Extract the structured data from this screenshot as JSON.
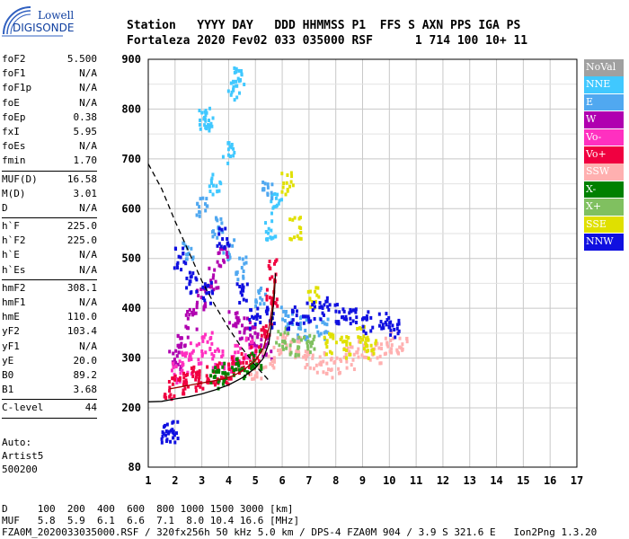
{
  "logo": {
    "line1": "Lowell",
    "line2": "DIGISONDE"
  },
  "header": {
    "labels": "Station   YYYY DAY   DDD HHMMSS P1  FFS S AXN PPS IGA PS",
    "values": "Fortaleza 2020 Fev02 033 035000 RSF      1 714 100 10+ 11"
  },
  "params": {
    "g1": [
      {
        "k": "foF2",
        "v": "5.500"
      },
      {
        "k": "foF1",
        "v": "N/A"
      },
      {
        "k": "foF1p",
        "v": "N/A"
      },
      {
        "k": "foE",
        "v": "N/A"
      },
      {
        "k": "foEp",
        "v": "0.38"
      },
      {
        "k": "fxI",
        "v": "5.95"
      },
      {
        "k": "foEs",
        "v": "N/A"
      },
      {
        "k": "fmin",
        "v": "1.70"
      }
    ],
    "g2": [
      {
        "k": "MUF(D)",
        "v": "16.58"
      },
      {
        "k": "M(D)",
        "v": "3.01"
      },
      {
        "k": "D",
        "v": "N/A"
      }
    ],
    "g3": [
      {
        "k": "h`F",
        "v": "225.0"
      },
      {
        "k": "h`F2",
        "v": "225.0"
      },
      {
        "k": "h`E",
        "v": "N/A"
      },
      {
        "k": "h`Es",
        "v": "N/A"
      }
    ],
    "g4": [
      {
        "k": "hmF2",
        "v": "308.1"
      },
      {
        "k": "hmF1",
        "v": "N/A"
      },
      {
        "k": "hmE",
        "v": "110.0"
      },
      {
        "k": "yF2",
        "v": "103.4"
      },
      {
        "k": "yF1",
        "v": "N/A"
      },
      {
        "k": "yE",
        "v": "20.0"
      },
      {
        "k": "B0",
        "v": "89.2"
      },
      {
        "k": "B1",
        "v": "3.68"
      }
    ],
    "g5": [
      {
        "k": "C-level",
        "v": "44"
      }
    ]
  },
  "auto": {
    "l1": "Auto:",
    "l2": "Artist5",
    "l3": "500200"
  },
  "legend": [
    {
      "label": "NoVal",
      "color": "#a0a0a0"
    },
    {
      "label": "NNE",
      "color": "#40c8ff"
    },
    {
      "label": "E",
      "color": "#50a8f0"
    },
    {
      "label": "W",
      "color": "#b000b0"
    },
    {
      "label": "Vo-",
      "color": "#ff30c0"
    },
    {
      "label": "Vo+",
      "color": "#f00040"
    },
    {
      "label": "SSW",
      "color": "#ffb0b0"
    },
    {
      "label": "X-",
      "color": "#008000"
    },
    {
      "label": "X+",
      "color": "#80c060"
    },
    {
      "label": "SSE",
      "color": "#e0e000"
    },
    {
      "label": "NNW",
      "color": "#1010e0"
    }
  ],
  "footer": {
    "d_row": "D     100  200  400  600  800 1000 1500 3000 [km]",
    "muf_row": "MUF   5.8  5.9  6.1  6.6  7.1  8.0 10.4 16.6 [MHz]",
    "file_row": "FZA0M_2020033035000.RSF / 320fx256h 50 kHz 5.0 km / DPS-4 FZA0M 904 / 3.9 S 321.6 E   Ion2Png 1.3.20"
  },
  "chart_data": {
    "type": "scatter",
    "xlim": [
      1,
      17
    ],
    "ylim": [
      80,
      900
    ],
    "x_ticks": [
      1,
      2,
      3,
      4,
      5,
      6,
      7,
      8,
      9,
      10,
      11,
      12,
      13,
      14,
      15,
      16,
      17
    ],
    "y_ticks": [
      80,
      200,
      300,
      400,
      500,
      600,
      700,
      800,
      900
    ],
    "grid": true,
    "series": [
      {
        "name": "NoVal",
        "values": []
      },
      {
        "name": "NNE",
        "points": [
          [
            3.1,
            780
          ],
          [
            3.3,
            775
          ],
          [
            4.2,
            840
          ],
          [
            4.4,
            860
          ],
          [
            5.6,
            560
          ],
          [
            5.8,
            610
          ],
          [
            4.0,
            710
          ],
          [
            3.5,
            650
          ]
        ]
      },
      {
        "name": "E",
        "points": [
          [
            2.5,
            520
          ],
          [
            3.0,
            600
          ],
          [
            3.6,
            560
          ],
          [
            4.0,
            520
          ],
          [
            4.5,
            480
          ],
          [
            5.2,
            420
          ],
          [
            5.5,
            640
          ],
          [
            6.2,
            380
          ],
          [
            6.8,
            360
          ],
          [
            7.5,
            360
          ]
        ]
      },
      {
        "name": "W",
        "points": [
          [
            2.0,
            300
          ],
          [
            2.3,
            340
          ],
          [
            2.6,
            380
          ],
          [
            3.0,
            420
          ],
          [
            3.4,
            460
          ],
          [
            3.8,
            500
          ],
          [
            4.2,
            380
          ],
          [
            4.6,
            360
          ],
          [
            5.0,
            340
          ],
          [
            5.4,
            320
          ]
        ]
      },
      {
        "name": "Vo-",
        "points": [
          [
            2.1,
            270
          ],
          [
            2.4,
            290
          ],
          [
            2.8,
            310
          ],
          [
            3.2,
            330
          ],
          [
            3.6,
            300
          ],
          [
            4.0,
            290
          ],
          [
            4.4,
            310
          ],
          [
            4.8,
            320
          ]
        ]
      },
      {
        "name": "Vo+",
        "points": [
          [
            1.8,
            240
          ],
          [
            2.2,
            250
          ],
          [
            2.6,
            260
          ],
          [
            3.0,
            255
          ],
          [
            3.4,
            265
          ],
          [
            3.8,
            270
          ],
          [
            4.2,
            280
          ],
          [
            4.6,
            290
          ],
          [
            5.0,
            300
          ],
          [
            5.4,
            360
          ],
          [
            5.6,
            420
          ],
          [
            5.7,
            475
          ]
        ]
      },
      {
        "name": "SSW",
        "points": [
          [
            5.0,
            280
          ],
          [
            5.5,
            300
          ],
          [
            6.0,
            330
          ],
          [
            6.5,
            320
          ],
          [
            7.0,
            300
          ],
          [
            7.5,
            290
          ],
          [
            8.0,
            280
          ],
          [
            8.5,
            300
          ],
          [
            9.0,
            320
          ],
          [
            9.5,
            310
          ],
          [
            10.0,
            330
          ],
          [
            10.5,
            330
          ]
        ]
      },
      {
        "name": "X-",
        "points": [
          [
            3.5,
            260
          ],
          [
            4.0,
            270
          ],
          [
            4.5,
            280
          ],
          [
            5.0,
            300
          ]
        ]
      },
      {
        "name": "X+",
        "points": [
          [
            6.0,
            340
          ],
          [
            6.5,
            320
          ],
          [
            7.0,
            330
          ]
        ]
      },
      {
        "name": "SSE",
        "points": [
          [
            6.2,
            650
          ],
          [
            6.5,
            560
          ],
          [
            7.2,
            420
          ],
          [
            7.8,
            330
          ],
          [
            8.4,
            320
          ],
          [
            9.0,
            340
          ],
          [
            9.3,
            320
          ]
        ]
      },
      {
        "name": "NNW",
        "points": [
          [
            1.7,
            145
          ],
          [
            1.9,
            150
          ],
          [
            2.2,
            500
          ],
          [
            2.6,
            450
          ],
          [
            3.2,
            430
          ],
          [
            3.8,
            540
          ],
          [
            4.5,
            430
          ],
          [
            5.0,
            380
          ],
          [
            5.6,
            380
          ],
          [
            6.4,
            380
          ],
          [
            7.0,
            390
          ],
          [
            7.6,
            400
          ],
          [
            8.2,
            390
          ],
          [
            8.6,
            380
          ],
          [
            9.2,
            370
          ],
          [
            9.8,
            380
          ],
          [
            10.2,
            360
          ]
        ]
      }
    ],
    "curves": [
      {
        "name": "dashed",
        "style": "dashed",
        "points": [
          [
            1.0,
            690
          ],
          [
            1.5,
            640
          ],
          [
            2.0,
            575
          ],
          [
            2.5,
            515
          ],
          [
            3.0,
            455
          ],
          [
            3.5,
            405
          ],
          [
            4.0,
            360
          ],
          [
            4.5,
            320
          ],
          [
            5.0,
            285
          ],
          [
            5.5,
            255
          ]
        ]
      },
      {
        "name": "profile",
        "style": "solid",
        "points": [
          [
            1.0,
            212
          ],
          [
            1.5,
            213
          ],
          [
            2.0,
            218
          ],
          [
            2.5,
            222
          ],
          [
            3.0,
            228
          ],
          [
            3.5,
            236
          ],
          [
            4.0,
            246
          ],
          [
            4.5,
            260
          ],
          [
            5.0,
            280
          ],
          [
            5.3,
            300
          ],
          [
            5.5,
            330
          ],
          [
            5.6,
            370
          ],
          [
            5.7,
            420
          ],
          [
            5.75,
            470
          ]
        ]
      },
      {
        "name": "trace",
        "style": "solid-red",
        "points": [
          [
            1.8,
            238
          ],
          [
            2.2,
            242
          ],
          [
            2.6,
            246
          ],
          [
            3.0,
            250
          ],
          [
            3.4,
            254
          ],
          [
            3.8,
            258
          ],
          [
            4.2,
            265
          ],
          [
            4.6,
            278
          ],
          [
            5.0,
            295
          ],
          [
            5.3,
            320
          ],
          [
            5.5,
            360
          ],
          [
            5.65,
            410
          ],
          [
            5.72,
            460
          ]
        ]
      }
    ]
  }
}
